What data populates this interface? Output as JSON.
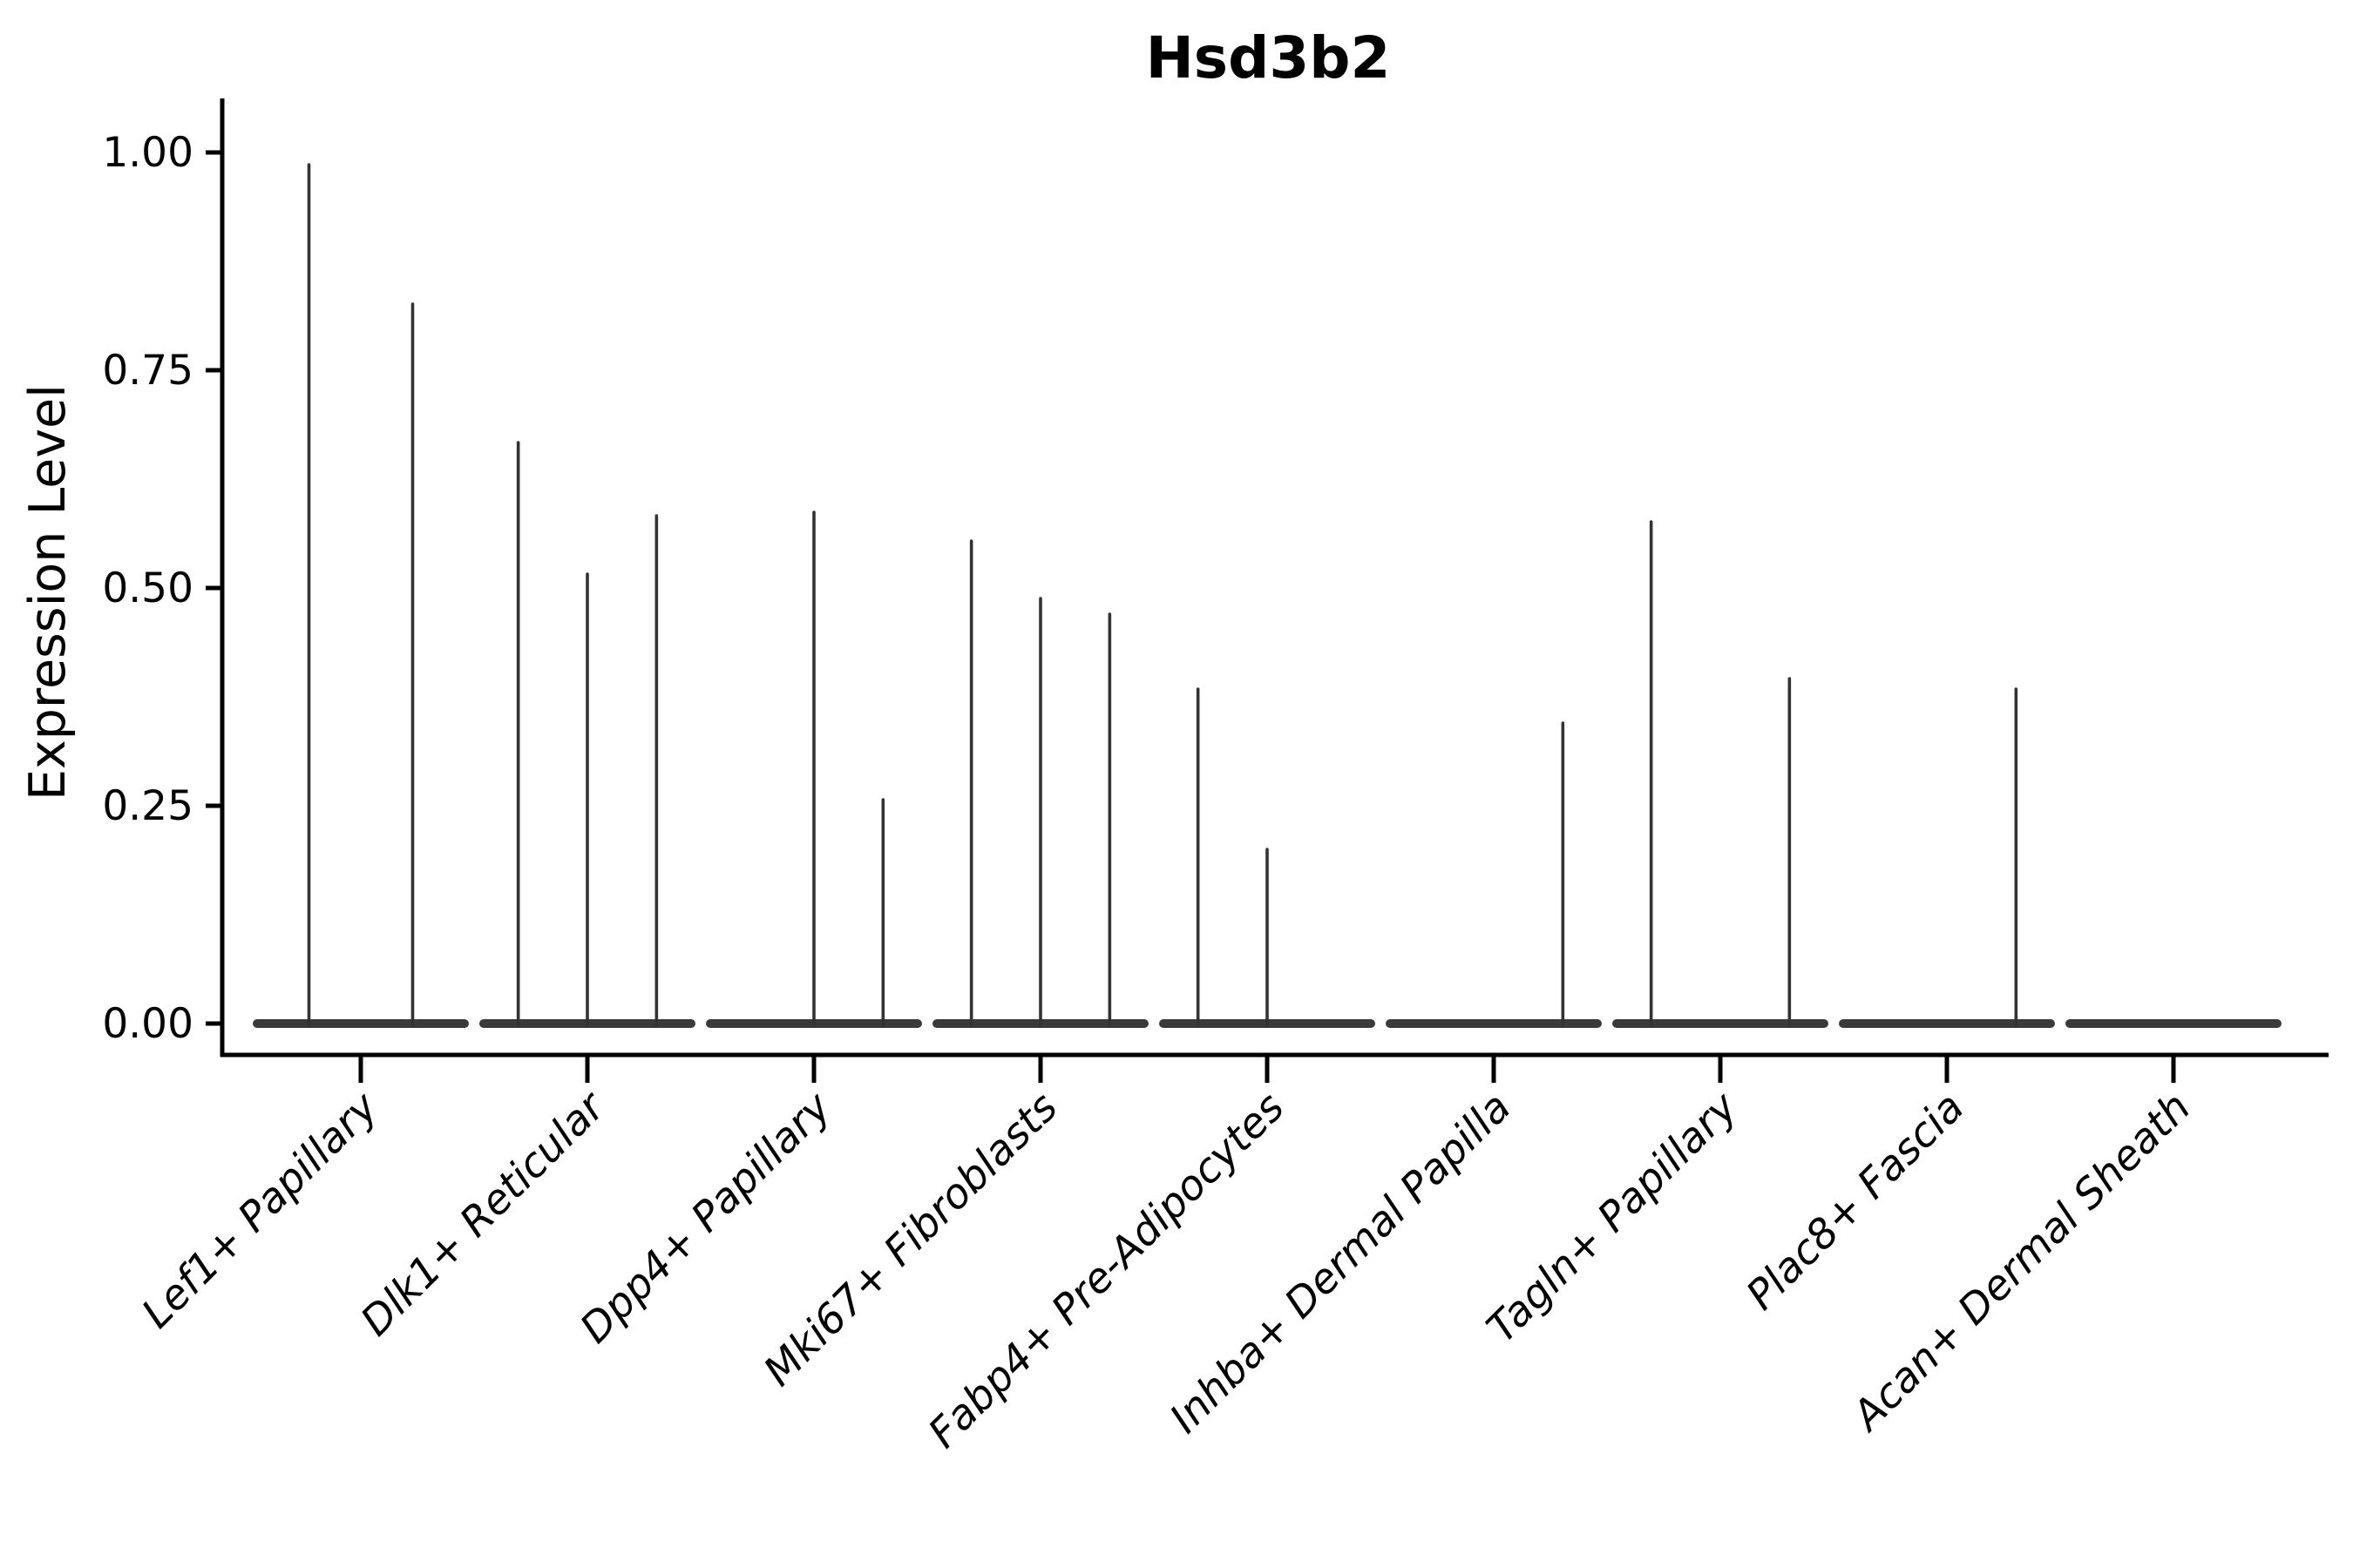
{
  "title": "Hsd3b2",
  "axes": {
    "ylabel": "Expression Level",
    "ytick_labels": [
      "0.00",
      "0.25",
      "0.50",
      "0.75",
      "1.00"
    ],
    "ytick_values": [
      0.0,
      0.25,
      0.5,
      0.75,
      1.0
    ]
  },
  "colors": {
    "violin_stroke": "#333333",
    "violin_base": "#3a3a3a",
    "axis": "#000000",
    "text": "#000000"
  },
  "chart_data": {
    "type": "violin",
    "title": "Hsd3b2",
    "xlabel": "",
    "ylabel": "Expression Level",
    "ylim": [
      0,
      1
    ],
    "yticks": [
      0.0,
      0.25,
      0.5,
      0.75,
      1.0
    ],
    "grid": false,
    "legend": "none",
    "description": "Degenerate (spike-like) violin plot of Hsd3b2 expression; each identity shows a flat baseline violin at 0 with thin spikes reaching the listed maximum expression per sub-violin (0 = completely flat sub-violin).",
    "categories": [
      "Lef1+ Papillary",
      "Dlk1+ Reticular",
      "Dpp4+ Papillary",
      "Mki67+ Fibroblasts",
      "Fabp4+ Pre-Adipocytes",
      "Inhba+ Dermal Papilla",
      "Tagln+ Papillary",
      "Plac8+ Fascia",
      "Acan+ Dermal Sheath"
    ],
    "groups": [
      {
        "label": "Lef1+ Papillary",
        "violin_maxima": [
          0.986,
          0.826
        ]
      },
      {
        "label": "Dlk1+ Reticular",
        "violin_maxima": [
          0.667,
          0.516,
          0.583
        ]
      },
      {
        "label": "Dpp4+ Papillary",
        "violin_maxima": [
          0.0,
          0.587,
          0.257
        ]
      },
      {
        "label": "Mki67+ Fibroblasts",
        "violin_maxima": [
          0.554,
          0.488,
          0.47
        ]
      },
      {
        "label": "Fabp4+ Pre-Adipocytes",
        "violin_maxima": [
          0.384,
          0.2,
          0.0
        ]
      },
      {
        "label": "Inhba+ Dermal Papilla",
        "violin_maxima": [
          0.0,
          0.0,
          0.345
        ]
      },
      {
        "label": "Tagln+ Papillary",
        "violin_maxima": [
          0.576,
          0.0,
          0.396
        ]
      },
      {
        "label": "Plac8+ Fascia",
        "violin_maxima": [
          0.0,
          0.0,
          0.384
        ]
      },
      {
        "label": "Acan+ Dermal Sheath",
        "violin_maxima": [
          0.0,
          0.0,
          0.0
        ]
      }
    ]
  }
}
